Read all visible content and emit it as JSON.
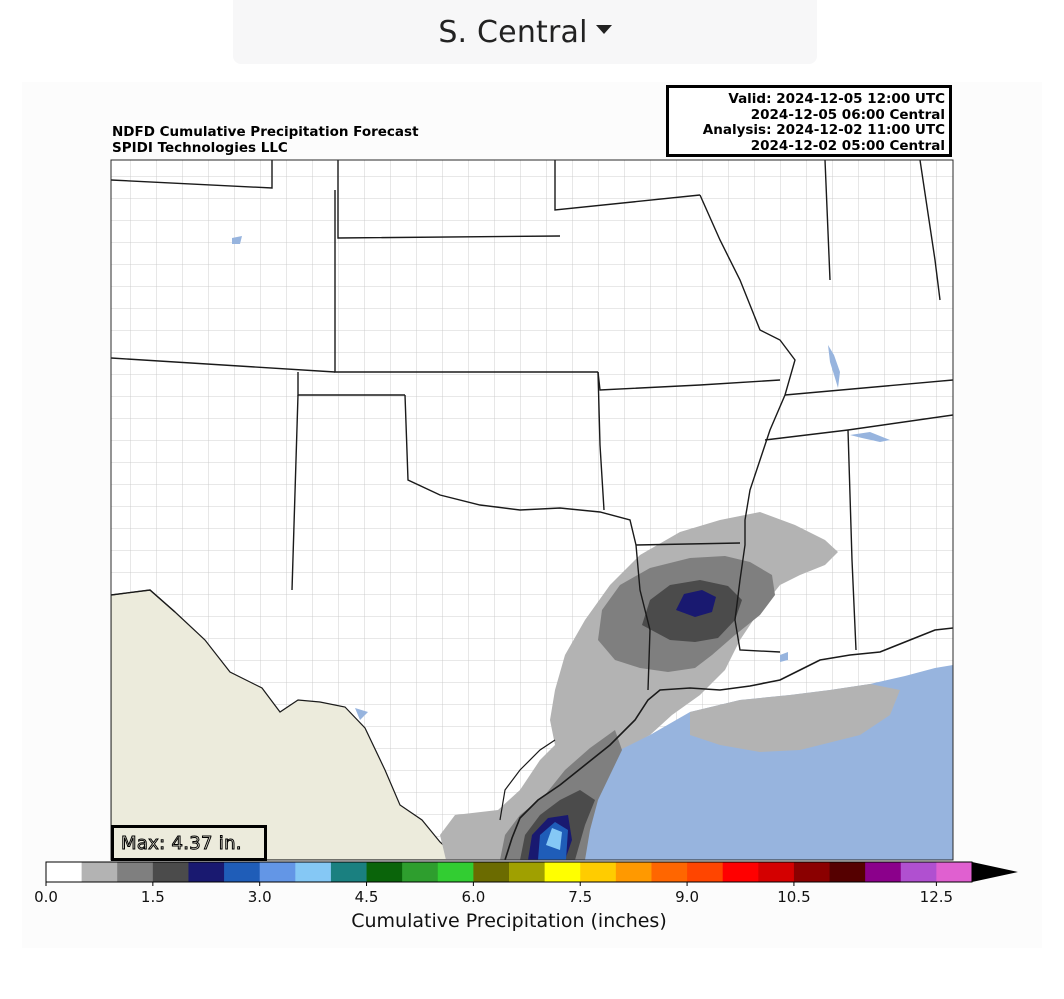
{
  "region_selector": {
    "selected": "S. Central",
    "icon": "caret-down-icon"
  },
  "map": {
    "title_lines": [
      "NDFD Cumulative Precipitation Forecast",
      "SPIDI Technologies LLC"
    ],
    "info_lines": [
      "Valid: 2024-12-05 12:00 UTC",
      "2024-12-05 06:00 Central",
      "Analysis: 2024-12-02 11:00 UTC",
      "2024-12-02 05:00 Central"
    ],
    "max_label": "Max: 4.37 in.",
    "colors": {
      "land": "#ffffff",
      "mexico": "#ecebdc",
      "ocean": "#97b4de",
      "boundary": "#1a1a1a",
      "county": "#b7b7b7"
    }
  },
  "colorbar": {
    "label": "Cumulative Precipitation (inches)",
    "tick_labels": [
      "0.0",
      "1.5",
      "3.0",
      "4.5",
      "6.0",
      "7.5",
      "9.0",
      "10.5",
      "12.5"
    ],
    "tick_values": [
      0,
      1.5,
      3,
      4.5,
      6,
      7.5,
      9,
      10.5,
      12.5
    ],
    "min": 0,
    "max": 13,
    "colors": [
      "#ffffff",
      "#b3b3b3",
      "#7f7f7f",
      "#4b4b4b",
      "#191970",
      "#1f5db8",
      "#6396e6",
      "#85c8f5",
      "#1a8080",
      "#0a640a",
      "#2e9e2e",
      "#32cd32",
      "#6b6b00",
      "#a0a000",
      "#ffff00",
      "#ffcc00",
      "#ff9900",
      "#ff6600",
      "#ff4500",
      "#ff0000",
      "#d40000",
      "#8b0000",
      "#550000",
      "#8b008b",
      "#b050d0",
      "#e060d0"
    ]
  }
}
